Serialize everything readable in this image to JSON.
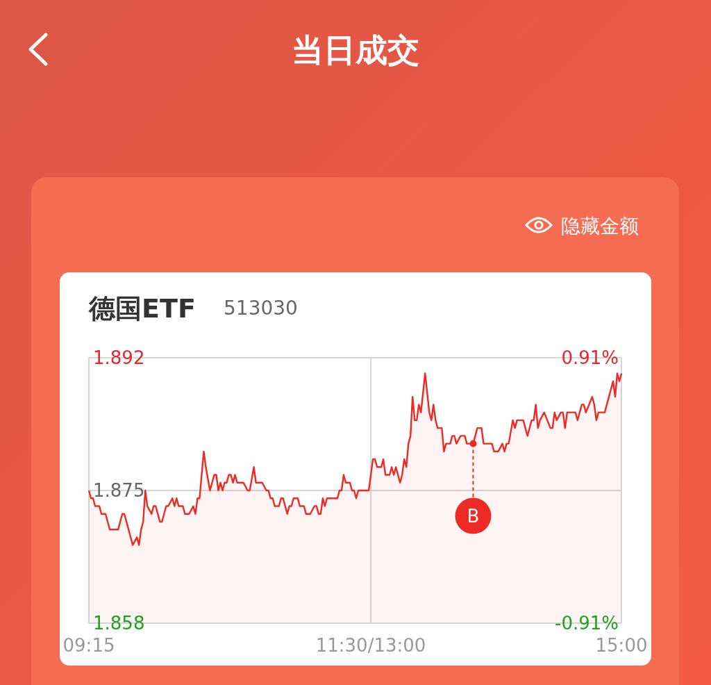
{
  "chart_data": {
    "type": "area",
    "title": "德国ETF",
    "subtitle": "513030",
    "annotations": [
      "当日成交",
      "隐藏金额",
      {
        "text": "B",
        "y": 1.881
      }
    ],
    "categories": [
      "09:15",
      null,
      null,
      null,
      null,
      null,
      null,
      null,
      null,
      null,
      null,
      null,
      null,
      null,
      null,
      null,
      null,
      null,
      null,
      null,
      null,
      null,
      null,
      null,
      null,
      null,
      null,
      null,
      null,
      null,
      null,
      null,
      null,
      null,
      null,
      null,
      null,
      null,
      null,
      null,
      null,
      null,
      null,
      null,
      null,
      null,
      null,
      null,
      null,
      null,
      null,
      null,
      null,
      null,
      null,
      null,
      null,
      null,
      null,
      null,
      null,
      null,
      null,
      null,
      null,
      null,
      null,
      null,
      null,
      null,
      null,
      null,
      null,
      null,
      null,
      null,
      null,
      null,
      null,
      null,
      null,
      null,
      null,
      null,
      null,
      null,
      null,
      null,
      null,
      null,
      null,
      null,
      null,
      null,
      null,
      null,
      null,
      null,
      null,
      null,
      null,
      null,
      null,
      null,
      null,
      null,
      null,
      null,
      null,
      null,
      null,
      null,
      null,
      null,
      null,
      null,
      null,
      null,
      null,
      null,
      null,
      null,
      null,
      null,
      null,
      null,
      null,
      null,
      null,
      null,
      null,
      null,
      null,
      null,
      null,
      "11:30/13:00",
      null,
      null,
      null,
      null,
      null,
      null,
      null,
      null,
      null,
      null,
      null,
      null,
      null,
      null,
      null,
      null,
      null,
      null,
      null,
      null,
      null,
      null,
      null,
      null,
      null,
      null,
      null,
      null,
      null,
      null,
      null,
      null,
      null,
      null,
      null,
      null,
      null,
      null,
      null,
      null,
      null,
      null,
      null,
      null,
      null,
      null,
      null,
      null,
      null,
      null,
      null,
      null,
      null,
      null,
      null,
      null,
      null,
      null,
      null,
      null,
      null,
      null,
      null,
      null,
      null,
      null,
      null,
      null,
      null,
      null,
      null,
      null,
      null,
      null,
      null,
      null,
      null,
      null,
      null,
      null,
      null,
      null,
      null,
      null,
      null,
      null,
      null,
      null,
      null,
      null,
      null,
      null,
      null,
      null,
      null,
      null,
      null,
      null,
      null,
      null,
      null,
      null,
      null,
      null,
      null,
      null,
      null,
      null,
      null,
      null,
      null,
      null,
      null,
      null,
      null,
      null,
      null,
      null,
      null,
      "15:00"
    ],
    "series": [
      {
        "color": "#ee2a24",
        "values": [
          1.875,
          1.874,
          1.874,
          1.873,
          null,
          1.873,
          1.872,
          null,
          1.872,
          null,
          1.87,
          null,
          null,
          null,
          1.87,
          null,
          1.872,
          1.872,
          null,
          1.87,
          null,
          1.868,
          null,
          1.869,
          1.868,
          1.87,
          1.871,
          1.875,
          1.873,
          null,
          1.872,
          1.873,
          1.873,
          null,
          1.871,
          1.871,
          null,
          1.873,
          1.873,
          null,
          1.874,
          1.873,
          1.874,
          1.873,
          null,
          1.873,
          1.872,
          null,
          1.872,
          null,
          1.873,
          1.872,
          1.874,
          1.874,
          null,
          1.88,
          1.878,
          null,
          1.875,
          1.876,
          1.877,
          1.877,
          1.875,
          1.876,
          1.875,
          1.876,
          1.876,
          1.877,
          1.877,
          1.876,
          1.877,
          1.876,
          null,
          null,
          1.876,
          null,
          1.875,
          1.875,
          null,
          1.878,
          1.876,
          null,
          null,
          1.876,
          null,
          1.875,
          1.875,
          1.874,
          1.874,
          1.873,
          null,
          1.873,
          1.874,
          1.874,
          null,
          1.872,
          1.873,
          1.873,
          1.874,
          null,
          1.874,
          1.873,
          null,
          1.873,
          1.872,
          null,
          1.872,
          null,
          1.873,
          1.873,
          1.872,
          1.872,
          1.874,
          1.873,
          1.874,
          null,
          null,
          null,
          null,
          1.874,
          1.875,
          1.875,
          1.877,
          1.876,
          null,
          1.876,
          1.875,
          1.875,
          1.874,
          1.875,
          null,
          null,
          null,
          null,
          1.875,
          null,
          1.879,
          1.879,
          1.878,
          null,
          1.878,
          1.879,
          1.877,
          null,
          1.877,
          1.878,
          1.877,
          1.878,
          null,
          1.876,
          1.877,
          1.879,
          1.878,
          1.881,
          1.882,
          1.887,
          1.884,
          1.884,
          1.886,
          1.885,
          null,
          1.89,
          null,
          1.885,
          1.884,
          1.886,
          1.884,
          1.883,
          null,
          1.883,
          1.88,
          1.881,
          null,
          1.881,
          1.882,
          1.882,
          1.881,
          null,
          1.882,
          null,
          1.882,
          1.881,
          null,
          null,
          1.881,
          1.882,
          1.883,
          null,
          1.883,
          1.881,
          null,
          null,
          null,
          1.881,
          1.88,
          null,
          1.88,
          null,
          1.881,
          1.88,
          1.881,
          1.881,
          null,
          1.884,
          1.883,
          1.884,
          null,
          null,
          1.884,
          null,
          1.882,
          null,
          1.884,
          1.884,
          1.886,
          1.883,
          1.884,
          null,
          1.885,
          null,
          null,
          1.883,
          1.883,
          1.885,
          1.884,
          null,
          1.885,
          1.885,
          1.883,
          1.885,
          null,
          null,
          null,
          1.885,
          1.884,
          null,
          1.886,
          1.886,
          1.885,
          null,
          null,
          1.887,
          1.886,
          1.884,
          1.885,
          null,
          null,
          1.885,
          null,
          1.887,
          null,
          1.889,
          1.887,
          1.89,
          1.889,
          1.89
        ]
      },
      {
        "type": "scatter",
        "color": "#ee2a24",
        "values": [
          null,
          null,
          null,
          null,
          null,
          null,
          null,
          null,
          null,
          null,
          null,
          null,
          null,
          null,
          null,
          null,
          null,
          null,
          null,
          null,
          null,
          null,
          null,
          null,
          null,
          null,
          null,
          null,
          null,
          null,
          null,
          null,
          null,
          null,
          null,
          null,
          null,
          null,
          null,
          null,
          null,
          null,
          null,
          null,
          null,
          null,
          null,
          null,
          null,
          null,
          null,
          null,
          null,
          null,
          null,
          null,
          null,
          null,
          null,
          null,
          null,
          null,
          null,
          null,
          null,
          null,
          null,
          null,
          null,
          null,
          null,
          null,
          null,
          null,
          null,
          null,
          null,
          null,
          null,
          null,
          null,
          null,
          null,
          null,
          null,
          null,
          null,
          null,
          null,
          null,
          null,
          null,
          null,
          null,
          null,
          null,
          null,
          null,
          null,
          null,
          null,
          null,
          null,
          null,
          null,
          null,
          null,
          null,
          null,
          null,
          null,
          null,
          null,
          null,
          null,
          null,
          null,
          null,
          null,
          null,
          null,
          null,
          null,
          null,
          null,
          null,
          null,
          null,
          null,
          null,
          null,
          null,
          null,
          null,
          null,
          null,
          null,
          null,
          null,
          null,
          null,
          null,
          null,
          null,
          null,
          null,
          null,
          null,
          null,
          null,
          null,
          null,
          null,
          null,
          null,
          null,
          null,
          null,
          null,
          null,
          null,
          null,
          null,
          null,
          null,
          null,
          null,
          null,
          null,
          null,
          null,
          null,
          null,
          null,
          null,
          null,
          null,
          null,
          null,
          null,
          null,
          null,
          null,
          null,
          1.881,
          null,
          null,
          null,
          null,
          null,
          null,
          null,
          null,
          null,
          null,
          null,
          null,
          null,
          null,
          null,
          null,
          null,
          null,
          null,
          null,
          null,
          null,
          null,
          null,
          null,
          null,
          null,
          null,
          null,
          null,
          null,
          null,
          null,
          null,
          null,
          null,
          null,
          null,
          null,
          null,
          null,
          null,
          null,
          null,
          null,
          null,
          null,
          null,
          null,
          null,
          null,
          null,
          null,
          null,
          null,
          null,
          null,
          null,
          null,
          null,
          null,
          null,
          null,
          null,
          null,
          null,
          null,
          null,
          null,
          null,
          null
        ]
      }
    ],
    "ylim": [
      1.858,
      1.892
    ],
    "yticks": [
      1.858,
      1.875,
      1.892
    ],
    "y2lim": [
      -0.91,
      0.91
    ],
    "y2ticks": [
      {
        "value": 0.91,
        "label": "0.91%"
      },
      {
        "value": -0.91,
        "label": "-0.91%"
      }
    ],
    "grid": true
  }
}
